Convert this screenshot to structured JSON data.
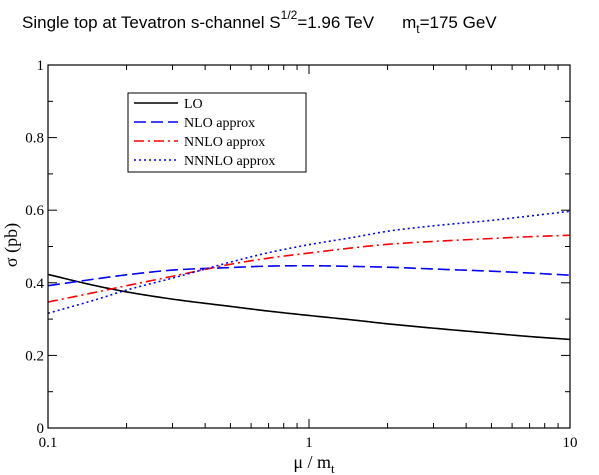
{
  "chart_data": {
    "type": "line",
    "title": {
      "main": "Single top  at  Tevatron  s-channel  S",
      "sup": "1/2",
      "after_sup": "=1.96 TeV",
      "mass_main": "m",
      "mass_sub": "t",
      "mass_after": "=175 GeV"
    },
    "xlabel": {
      "main": "μ / m",
      "sub": "t"
    },
    "ylabel": "σ  (pb)",
    "x_scale": "log",
    "xlim": [
      0.1,
      10
    ],
    "ylim": [
      0,
      1
    ],
    "x_ticks": [
      {
        "value": 0.1,
        "label": "0.1"
      },
      {
        "value": 1,
        "label": "1"
      },
      {
        "value": 10,
        "label": "10"
      }
    ],
    "y_ticks": [
      {
        "value": 0,
        "label": "0"
      },
      {
        "value": 0.2,
        "label": "0.2"
      },
      {
        "value": 0.4,
        "label": "0.4"
      },
      {
        "value": 0.6,
        "label": "0.6"
      },
      {
        "value": 0.8,
        "label": "0.8"
      },
      {
        "value": 1,
        "label": "1"
      }
    ],
    "grid": false,
    "legend_position": "top-left",
    "series": [
      {
        "name": "LO",
        "color": "#000000",
        "dash": "solid",
        "x": [
          0.1,
          0.15,
          0.2,
          0.3,
          0.5,
          0.7,
          1,
          1.5,
          2,
          3,
          5,
          7,
          10
        ],
        "y": [
          0.423,
          0.393,
          0.375,
          0.355,
          0.335,
          0.322,
          0.31,
          0.297,
          0.287,
          0.275,
          0.261,
          0.252,
          0.244
        ]
      },
      {
        "name": "NLO approx",
        "color": "#0000ff",
        "dash": "dashed",
        "x": [
          0.1,
          0.15,
          0.2,
          0.3,
          0.5,
          0.7,
          1,
          1.5,
          2,
          3,
          5,
          7,
          10
        ],
        "y": [
          0.392,
          0.41,
          0.422,
          0.435,
          0.442,
          0.446,
          0.447,
          0.445,
          0.443,
          0.438,
          0.432,
          0.427,
          0.421
        ]
      },
      {
        "name": "NNLO approx",
        "color": "#ff0000",
        "dash": "dashdot",
        "x": [
          0.1,
          0.15,
          0.2,
          0.3,
          0.5,
          0.7,
          1,
          1.5,
          2,
          3,
          5,
          7,
          10
        ],
        "y": [
          0.347,
          0.373,
          0.392,
          0.418,
          0.451,
          0.468,
          0.482,
          0.497,
          0.506,
          0.514,
          0.522,
          0.527,
          0.531
        ]
      },
      {
        "name": "NNNLO approx",
        "color": "#0000ff",
        "dash": "dotted",
        "x": [
          0.1,
          0.15,
          0.2,
          0.3,
          0.5,
          0.7,
          1,
          1.5,
          2,
          3,
          5,
          7,
          10
        ],
        "y": [
          0.316,
          0.352,
          0.38,
          0.413,
          0.457,
          0.483,
          0.505,
          0.526,
          0.542,
          0.557,
          0.572,
          0.584,
          0.597
        ]
      }
    ]
  }
}
